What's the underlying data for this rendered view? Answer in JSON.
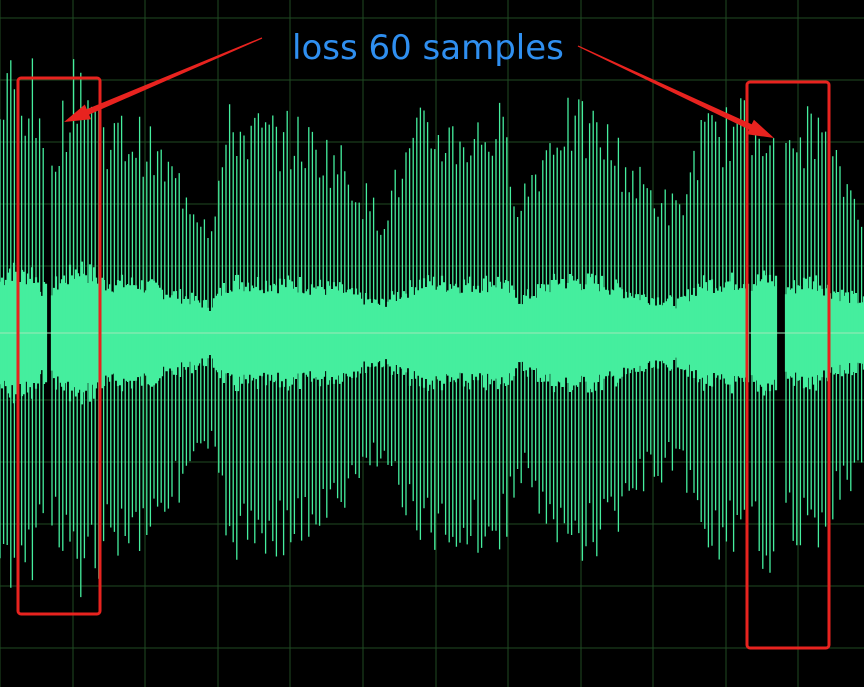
{
  "annotation": {
    "text": "loss 60 samples",
    "text_color": "#2f8ff0",
    "marker_color": "#e8231f"
  },
  "chart_data": {
    "type": "line",
    "title": "",
    "xlabel": "",
    "ylabel": "",
    "ylim": [
      -1,
      1
    ],
    "grid": true,
    "colors": {
      "background": "#000000",
      "grid": "#1f4a22",
      "waveform": "#45ee9e",
      "center_line": "#9fe8b8"
    },
    "series": [
      {
        "envelope_segments": [
          {
            "x": [
              0,
              10,
              20,
              32,
              40,
              46
            ],
            "amp": [
              0.72,
              0.9,
              0.78,
              0.86,
              0.66,
              0.58
            ]
          },
          {
            "x": [
              52,
              60,
              70,
              80,
              90,
              100
            ],
            "amp": [
              0.62,
              0.72,
              0.8,
              0.92,
              0.82,
              0.76
            ]
          },
          {
            "x": [
              100,
              140,
              190,
              210,
              230,
              260,
              300,
              340,
              380,
              420,
              470,
              500,
              520,
              560,
              600,
              640,
              680,
              700,
              720,
              748
            ],
            "amp": [
              0.7,
              0.68,
              0.48,
              0.38,
              0.72,
              0.7,
              0.68,
              0.6,
              0.4,
              0.7,
              0.68,
              0.72,
              0.46,
              0.74,
              0.7,
              0.52,
              0.42,
              0.68,
              0.7,
              0.74
            ]
          },
          {
            "x": [
              752,
              765,
              776
            ],
            "amp": [
              0.7,
              0.76,
              0.72
            ]
          },
          {
            "x": [
              786,
              800,
              815,
              830,
              864
            ],
            "amp": [
              0.6,
              0.68,
              0.74,
              0.6,
              0.44
            ]
          }
        ],
        "dropouts": [
          {
            "x0": 46,
            "x1": 52
          },
          {
            "x0": 776,
            "x1": 786
          }
        ]
      }
    ],
    "highlight_regions": [
      {
        "x0": 18,
        "x1": 100
      },
      {
        "x0": 747,
        "x1": 829
      }
    ]
  }
}
